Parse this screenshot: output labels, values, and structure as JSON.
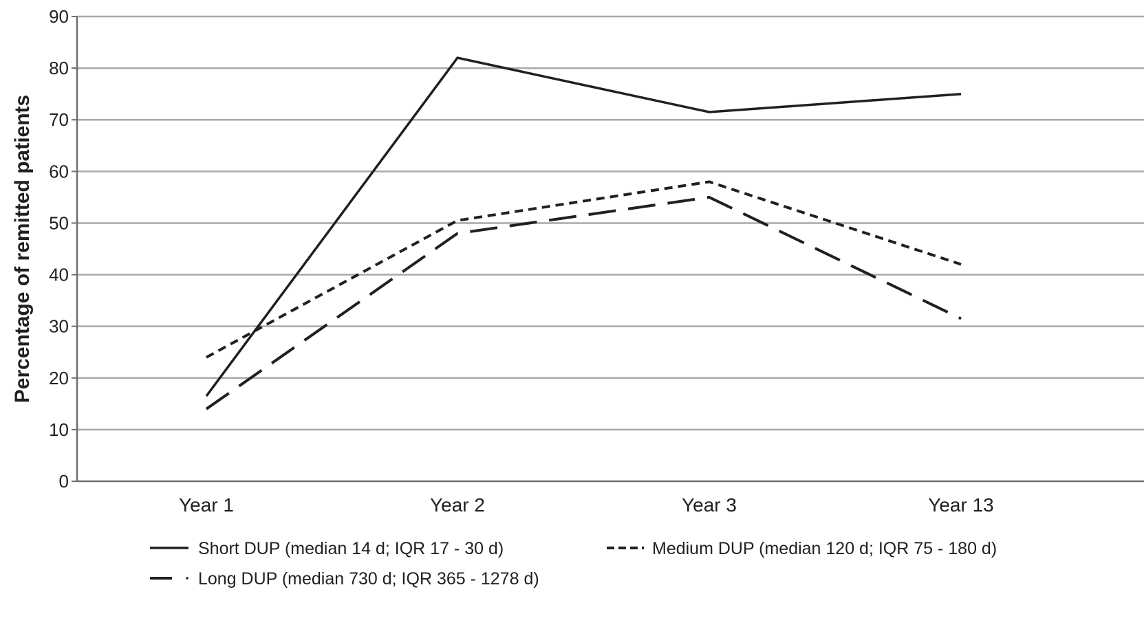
{
  "chart_data": {
    "type": "line",
    "title": "",
    "xlabel": "",
    "ylabel": "Percentage of remitted patients",
    "ylim": [
      0,
      90
    ],
    "yticks": [
      0,
      10,
      20,
      30,
      40,
      50,
      60,
      70,
      80,
      90
    ],
    "grid": true,
    "legend_position": "bottom",
    "categories": [
      "Year 1",
      "Year 2",
      "Year 3",
      "Year 13"
    ],
    "series": [
      {
        "name": "Short DUP (median 14 d; IQR 17 - 30 d)",
        "style": "solid",
        "values": [
          16.5,
          82,
          71.5,
          75
        ]
      },
      {
        "name": "Medium DUP (median 120 d; IQR 75 - 180 d)",
        "style": "dotted",
        "values": [
          24,
          50.5,
          58,
          42
        ]
      },
      {
        "name": "Long DUP (median 730 d; IQR 365 - 1278 d)",
        "style": "dashed",
        "values": [
          14,
          48,
          55,
          31.5
        ]
      }
    ],
    "colors": {
      "line": "#231f20",
      "grid": "#a7a9ac",
      "axis": "#6d6e71"
    }
  }
}
